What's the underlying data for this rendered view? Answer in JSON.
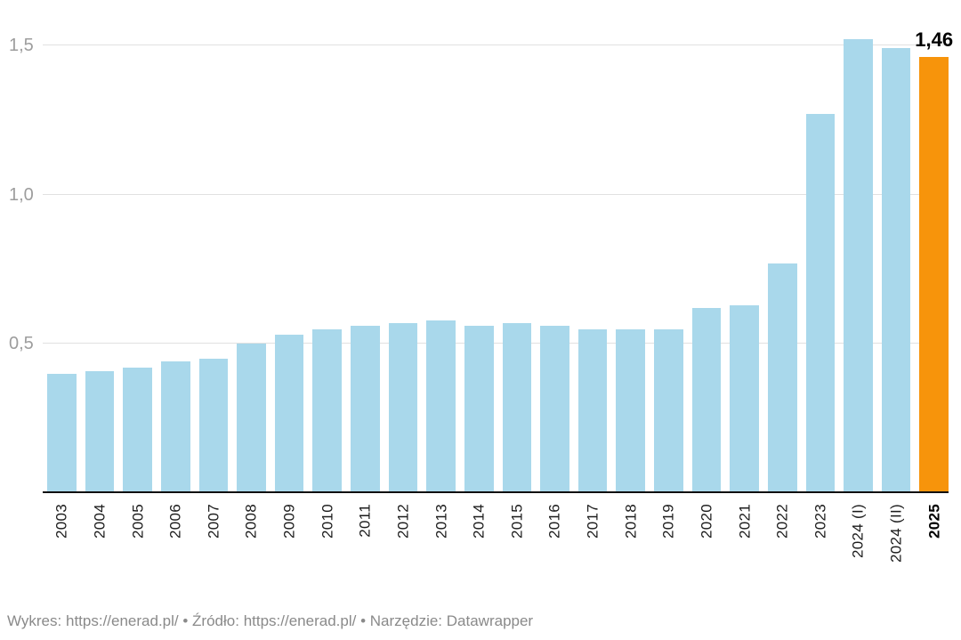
{
  "chart_data": {
    "type": "bar",
    "title": "",
    "categories": [
      "2003",
      "2004",
      "2005",
      "2006",
      "2007",
      "2008",
      "2009",
      "2010",
      "2011",
      "2012",
      "2013",
      "2014",
      "2015",
      "2016",
      "2017",
      "2018",
      "2019",
      "2020",
      "2021",
      "2022",
      "2023",
      "2024 (I)",
      "2024 (II)",
      "2025"
    ],
    "values": [
      0.4,
      0.41,
      0.42,
      0.44,
      0.45,
      0.5,
      0.53,
      0.55,
      0.56,
      0.57,
      0.58,
      0.56,
      0.57,
      0.56,
      0.55,
      0.55,
      0.55,
      0.62,
      0.63,
      0.77,
      1.27,
      1.52,
      1.49,
      1.46
    ],
    "highlight_index": 23,
    "value_label": "1,46",
    "xlabel": "",
    "ylabel": "",
    "ylim": [
      0,
      1.5
    ],
    "yticks": [
      {
        "value": 0.5,
        "label": "0,5"
      },
      {
        "value": 1.0,
        "label": "1,0"
      },
      {
        "value": 1.5,
        "label": "1,5"
      }
    ],
    "grid": true,
    "legend_position": "none",
    "x_label_rotation": -90,
    "colors": {
      "bar": "#A9D8EB",
      "highlight": "#F7940B",
      "gridline": "#E1E1E1",
      "axis_line": "#101010",
      "ytick_text": "#9D9D9D",
      "xtick_text": "#1C1C1C",
      "value_label_text": "#000000",
      "footer_text": "#8A8A8A"
    }
  },
  "footer": {
    "chart_label": "Wykres:",
    "chart_link": "https://enerad.pl/",
    "separator": "•",
    "source_label": "Źródło:",
    "source_link": "https://enerad.pl/",
    "tool_label": "Narzędzie:",
    "tool_link": "Datawrapper"
  }
}
